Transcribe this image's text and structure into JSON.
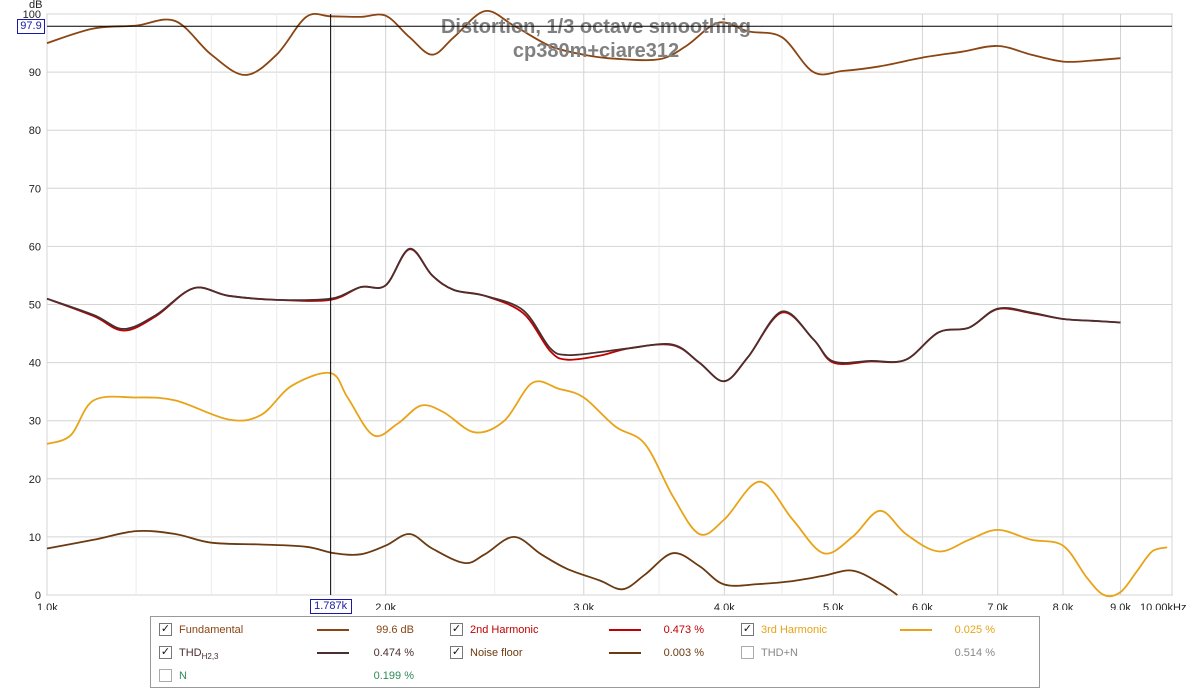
{
  "chart_data": {
    "type": "line",
    "title": "Distortion, 1/3 octave smoothing",
    "subtitle": "cp380m+ciare312",
    "ylabel": "dB",
    "xlabel": "",
    "xscale": "log",
    "xlim": [
      1000,
      10000
    ],
    "ylim": [
      0,
      100
    ],
    "grid": true,
    "y_ticks": [
      "0",
      "10",
      "20",
      "30",
      "40",
      "50",
      "60",
      "70",
      "80",
      "90",
      "100"
    ],
    "x_ticks": [
      {
        "f": 1000,
        "label": "1.0k"
      },
      {
        "f": 2000,
        "label": "2.0k"
      },
      {
        "f": 3000,
        "label": "3.0k"
      },
      {
        "f": 4000,
        "label": "4.0k"
      },
      {
        "f": 5000,
        "label": "5.0k"
      },
      {
        "f": 6000,
        "label": "6.0k"
      },
      {
        "f": 7000,
        "label": "7.0k"
      },
      {
        "f": 8000,
        "label": "8.0k"
      },
      {
        "f": 9000,
        "label": "9.0k"
      },
      {
        "f": 10000,
        "label": "10.00kHz"
      }
    ],
    "cursor": {
      "x_label": "1.787k",
      "y_label": "97.9",
      "x": 1787,
      "y": 97.9
    },
    "series": [
      {
        "name": "Fundamental",
        "color": "#8b4513",
        "points": [
          [
            1000,
            95
          ],
          [
            1100,
            97.5
          ],
          [
            1200,
            98
          ],
          [
            1300,
            98.8
          ],
          [
            1400,
            93
          ],
          [
            1500,
            89.5
          ],
          [
            1600,
            93
          ],
          [
            1700,
            99.5
          ],
          [
            1787,
            99.6
          ],
          [
            1900,
            99.5
          ],
          [
            2000,
            99.7
          ],
          [
            2100,
            96
          ],
          [
            2200,
            93
          ],
          [
            2300,
            96
          ],
          [
            2450,
            100.5
          ],
          [
            2600,
            98
          ],
          [
            2800,
            94.5
          ],
          [
            3000,
            93
          ],
          [
            3200,
            92.3
          ],
          [
            3500,
            92.2
          ],
          [
            3700,
            94.5
          ],
          [
            3950,
            98.5
          ],
          [
            4200,
            97
          ],
          [
            4500,
            96
          ],
          [
            4800,
            90
          ],
          [
            5100,
            90.2
          ],
          [
            5500,
            91
          ],
          [
            6000,
            92.5
          ],
          [
            6500,
            93.5
          ],
          [
            7000,
            94.5
          ],
          [
            7500,
            93
          ],
          [
            8000,
            91.8
          ],
          [
            8500,
            92
          ],
          [
            9000,
            92.4
          ]
        ]
      },
      {
        "name": "2nd Harmonic",
        "color": "#c00000",
        "points": [
          [
            1000,
            51
          ],
          [
            1100,
            48
          ],
          [
            1170,
            45.5
          ],
          [
            1250,
            48
          ],
          [
            1350,
            52.8
          ],
          [
            1450,
            51.5
          ],
          [
            1600,
            50.8
          ],
          [
            1787,
            50.8
          ],
          [
            1900,
            53
          ],
          [
            2000,
            53.3
          ],
          [
            2100,
            59.5
          ],
          [
            2200,
            55
          ],
          [
            2300,
            52.5
          ],
          [
            2450,
            51.5
          ],
          [
            2650,
            48.5
          ],
          [
            2800,
            42
          ],
          [
            2900,
            40.5
          ],
          [
            3100,
            41.2
          ],
          [
            3300,
            42.5
          ],
          [
            3600,
            43
          ],
          [
            3800,
            40
          ],
          [
            4000,
            36.8
          ],
          [
            4200,
            41
          ],
          [
            4500,
            48.6
          ],
          [
            4800,
            44
          ],
          [
            5000,
            40
          ],
          [
            5400,
            40.2
          ],
          [
            5800,
            40.5
          ],
          [
            6200,
            45.2
          ],
          [
            6600,
            46
          ],
          [
            7000,
            49.2
          ],
          [
            7500,
            48.5
          ],
          [
            8000,
            47.5
          ],
          [
            8500,
            47.2
          ],
          [
            9000,
            46.9
          ]
        ]
      },
      {
        "name": "3rd Harmonic",
        "color": "#e8a317",
        "points": [
          [
            1000,
            26
          ],
          [
            1050,
            27.5
          ],
          [
            1100,
            33.5
          ],
          [
            1200,
            34
          ],
          [
            1300,
            33.5
          ],
          [
            1450,
            30.2
          ],
          [
            1550,
            31
          ],
          [
            1650,
            36
          ],
          [
            1787,
            38.2
          ],
          [
            1850,
            34
          ],
          [
            1950,
            27.5
          ],
          [
            2050,
            29.5
          ],
          [
            2150,
            32.6
          ],
          [
            2250,
            31.5
          ],
          [
            2400,
            28
          ],
          [
            2550,
            30
          ],
          [
            2700,
            36.5
          ],
          [
            2850,
            35.5
          ],
          [
            3000,
            34
          ],
          [
            3200,
            29
          ],
          [
            3400,
            26
          ],
          [
            3600,
            17
          ],
          [
            3800,
            10.5
          ],
          [
            4000,
            13
          ],
          [
            4300,
            19.5
          ],
          [
            4600,
            13
          ],
          [
            4900,
            7.2
          ],
          [
            5200,
            10
          ],
          [
            5500,
            14.5
          ],
          [
            5800,
            10.5
          ],
          [
            6200,
            7.5
          ],
          [
            6600,
            9.5
          ],
          [
            7000,
            11.2
          ],
          [
            7500,
            9.5
          ],
          [
            8000,
            8.5
          ],
          [
            8400,
            3
          ],
          [
            8700,
            0
          ],
          [
            9000,
            0.5
          ],
          [
            9300,
            4
          ],
          [
            9600,
            7.5
          ],
          [
            9900,
            8.2
          ]
        ]
      },
      {
        "name": "THD",
        "color": "#4a2f2f",
        "points": [
          [
            1000,
            51
          ],
          [
            1100,
            48.2
          ],
          [
            1170,
            45.8
          ],
          [
            1250,
            48.2
          ],
          [
            1350,
            52.8
          ],
          [
            1450,
            51.5
          ],
          [
            1600,
            50.8
          ],
          [
            1787,
            51
          ],
          [
            1900,
            53
          ],
          [
            2000,
            53.3
          ],
          [
            2100,
            59.6
          ],
          [
            2200,
            55
          ],
          [
            2300,
            52.5
          ],
          [
            2450,
            51.5
          ],
          [
            2650,
            49
          ],
          [
            2800,
            42.5
          ],
          [
            2900,
            41.3
          ],
          [
            3100,
            41.8
          ],
          [
            3300,
            42.5
          ],
          [
            3600,
            43.1
          ],
          [
            3800,
            40
          ],
          [
            4000,
            36.8
          ],
          [
            4200,
            41
          ],
          [
            4500,
            48.8
          ],
          [
            4800,
            44
          ],
          [
            5000,
            40.2
          ],
          [
            5400,
            40.3
          ],
          [
            5800,
            40.5
          ],
          [
            6200,
            45.2
          ],
          [
            6600,
            46
          ],
          [
            7000,
            49.3
          ],
          [
            7500,
            48.6
          ],
          [
            8000,
            47.5
          ],
          [
            8500,
            47.2
          ],
          [
            9000,
            46.9
          ]
        ]
      },
      {
        "name": "Noise floor",
        "color": "#6b3a10",
        "points": [
          [
            1000,
            8
          ],
          [
            1100,
            9.5
          ],
          [
            1200,
            11
          ],
          [
            1300,
            10.5
          ],
          [
            1400,
            9
          ],
          [
            1550,
            8.7
          ],
          [
            1700,
            8.3
          ],
          [
            1800,
            7.2
          ],
          [
            1900,
            7
          ],
          [
            2000,
            8.5
          ],
          [
            2100,
            10.5
          ],
          [
            2200,
            8
          ],
          [
            2350,
            5.5
          ],
          [
            2450,
            7
          ],
          [
            2600,
            10
          ],
          [
            2750,
            7
          ],
          [
            2900,
            4.5
          ],
          [
            3100,
            2.5
          ],
          [
            3250,
            1
          ],
          [
            3400,
            3.5
          ],
          [
            3600,
            7.2
          ],
          [
            3800,
            5
          ],
          [
            4000,
            1.8
          ],
          [
            4300,
            1.9
          ],
          [
            4600,
            2.4
          ],
          [
            4900,
            3.3
          ],
          [
            5200,
            4.2
          ],
          [
            5500,
            2
          ],
          [
            5700,
            0
          ]
        ]
      }
    ]
  },
  "legend": {
    "fundamental": {
      "name": "Fundamental",
      "value": "99.6 dB",
      "checked": true
    },
    "h2": {
      "name": "2nd Harmonic",
      "value": "0.473 %",
      "checked": true
    },
    "h3": {
      "name": "3rd Harmonic",
      "value": "0.025 %",
      "checked": true
    },
    "thd": {
      "name": "THD",
      "sub": "H2,3",
      "value": "0.474 %",
      "checked": true
    },
    "noise": {
      "name": "Noise floor",
      "value": "0.003 %",
      "checked": true
    },
    "thdn": {
      "name": "THD+N",
      "value": "0.514 %",
      "checked": false
    },
    "n": {
      "name": "N",
      "value": "0.199 %",
      "checked": false
    }
  },
  "colors": {
    "fundamental": "#8b4513",
    "h2": "#c00000",
    "h3": "#e8a317",
    "thd": "#4a2f2f",
    "noise": "#6b3a10",
    "thdn_text": "#888888",
    "n_value": "#2e8b57",
    "title": "#808080"
  }
}
